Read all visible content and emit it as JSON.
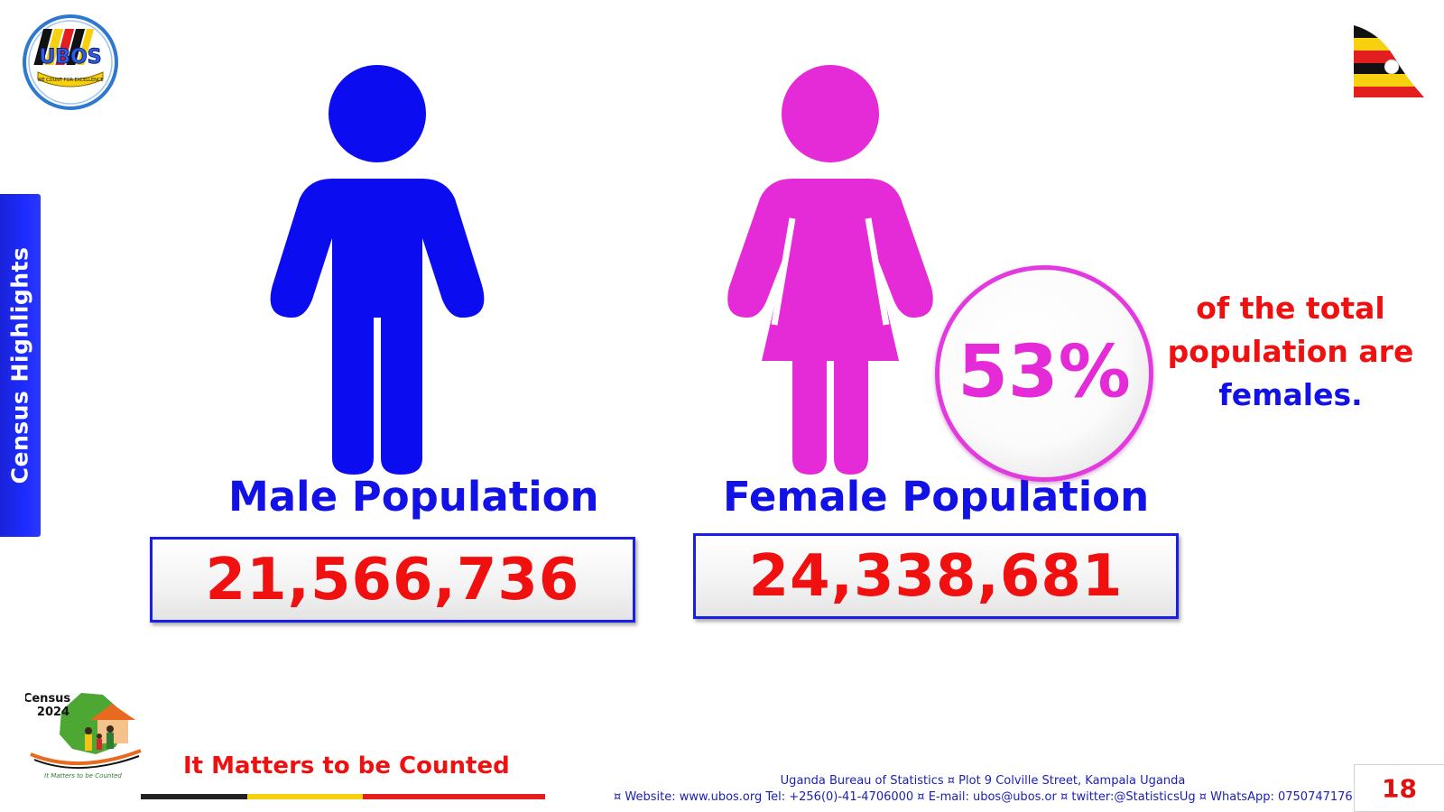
{
  "sidebar": {
    "label": "Census Highlights"
  },
  "logo": {
    "text": "UBOS",
    "tagline": "WE COUNT FOR EXCELLENCE"
  },
  "male": {
    "label": "Male Population",
    "value": "21,566,736",
    "color": "#0c0cf0"
  },
  "female": {
    "label": "Female Population",
    "value": "24,338,681",
    "color": "#e52ad7"
  },
  "highlight": {
    "percent": "53%",
    "caption_line1": "of  the total",
    "caption_line2": "population are",
    "caption_line3": "females."
  },
  "census_logo": {
    "line1": "Census",
    "line2": "2024",
    "tagline": "It Matters to be Counted"
  },
  "slogan": "It Matters to be Counted",
  "footer": {
    "line1": "Uganda Bureau of Statistics ¤ Plot 9 Colville Street, Kampala Uganda",
    "line2": "¤ Website: www.ubos.org Tel: +256(0)-41-4706000 ¤ E-mail: ubos@ubos.or ¤ twitter:@StatisticsUg ¤ WhatsApp: 0750747176"
  },
  "page_number": "18",
  "colors": {
    "blue": "#1212e6",
    "red": "#f01010",
    "magenta": "#e52ad7",
    "flag_black": "#111111",
    "flag_yellow": "#f7d10f",
    "flag_red": "#e21e1e"
  }
}
